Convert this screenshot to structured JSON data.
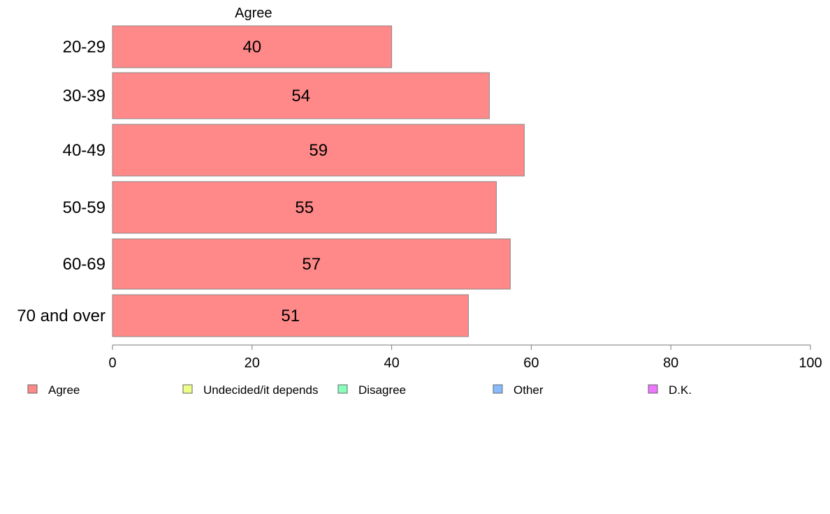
{
  "chart_data": {
    "type": "bar",
    "orientation": "horizontal",
    "stacked": true,
    "categories": [
      "20-29",
      "30-39",
      "40-49",
      "50-59",
      "60-69",
      "70 and over"
    ],
    "series": [
      {
        "name": "Agree",
        "values": [
          40,
          54,
          59,
          55,
          57,
          51
        ],
        "color": "#ff8888"
      }
    ],
    "xlim": [
      0,
      100
    ],
    "xticks": [
      "0",
      "20",
      "40",
      "60",
      "80",
      "100"
    ],
    "series_heading": "Agree",
    "legend": {
      "position": "bottom",
      "items": [
        {
          "label": "Agree",
          "color": "#ff8888"
        },
        {
          "label": "Undecided/it depends",
          "color": "#eeff88"
        },
        {
          "label": "Disagree",
          "color": "#88ffbb"
        },
        {
          "label": "Other",
          "color": "#88bbff"
        },
        {
          "label": "D.K.",
          "color": "#ee77ff"
        }
      ]
    },
    "grid": false
  }
}
